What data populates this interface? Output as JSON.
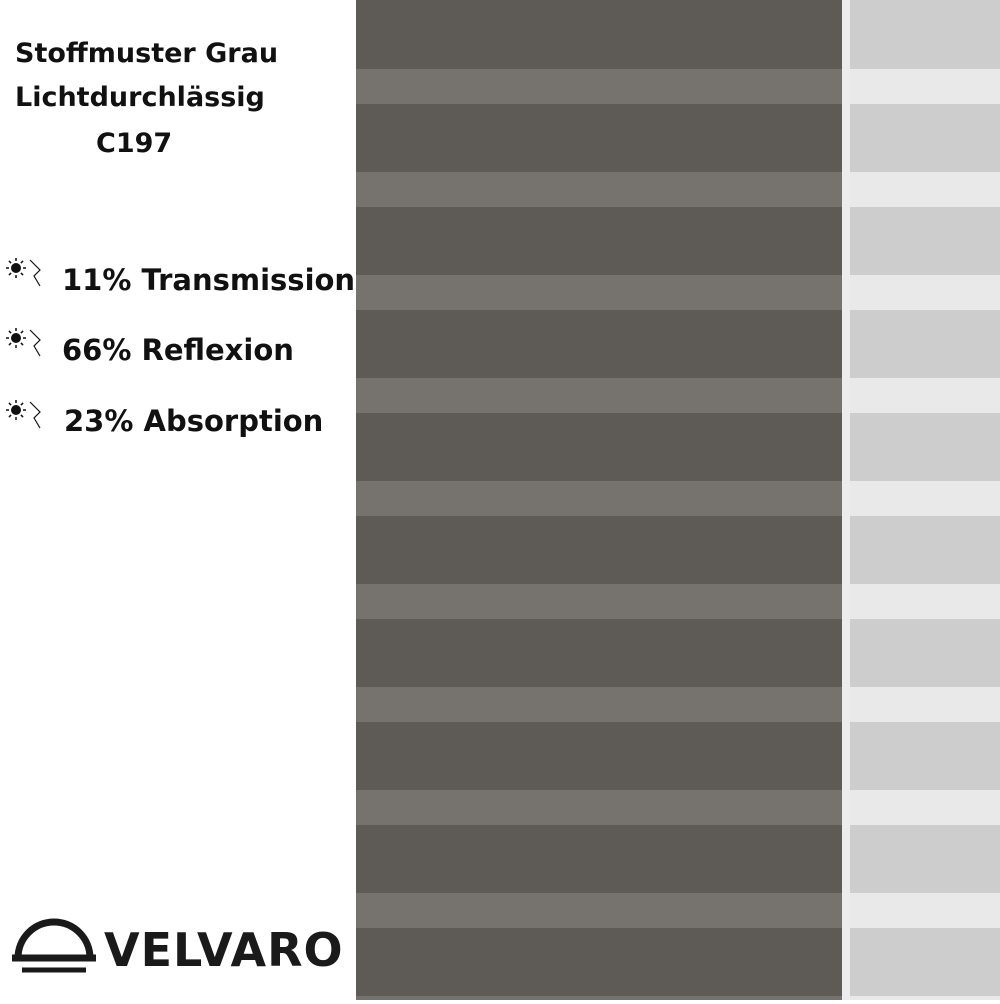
{
  "header": {
    "lines": [
      "Stoffmuster Grau",
      "Lichtdurchlässig",
      "C197"
    ]
  },
  "features": [
    "11% Transmission",
    "66% Reflexion",
    "23% Absorption"
  ],
  "brand": "VELVARO"
}
